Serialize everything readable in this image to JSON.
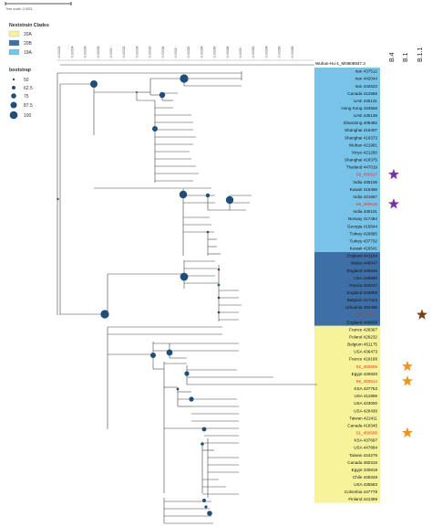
{
  "scale_label": "Tree scale: 0.0001",
  "axis_ticks": [
    "0.00002",
    "0.00004",
    "0.00006",
    "0.00008",
    "0.0001",
    "0.00012",
    "0.00014",
    "0.00016",
    "0.00018",
    "0.0002",
    "0.00022",
    "0.00024",
    "0.00026",
    "0.00028",
    "0.0003",
    "0.00032",
    "0.00034",
    "0.00036",
    "0.00038"
  ],
  "legend": {
    "clades_title": "Nextstrain Clades",
    "clades": [
      {
        "label": "20A",
        "color": "#f6f39a"
      },
      {
        "label": "20B",
        "color": "#3e6fa6"
      },
      {
        "label": "19A",
        "color": "#78c4e8"
      }
    ],
    "bootstrap_title": "bootstrap",
    "bootstrap": [
      "50",
      "62.5",
      "75",
      "87.5",
      "100"
    ]
  },
  "columns": [
    "B.4",
    "B.1",
    "B.1.1"
  ],
  "root_label": "Wuhan-Hu-1_MN908947.3",
  "colors": {
    "highlight": "#e2302a",
    "normal": "#222222",
    "purple_star": "#7d2fa6",
    "brown_star": "#7b3f12",
    "orange_star": "#f0921e",
    "node": "#1f4e79"
  },
  "tips": [
    {
      "label": "Iran 437512",
      "clade": "19A",
      "highlight": false
    },
    {
      "label": "Iran 442044",
      "clade": "19A",
      "highlight": false
    },
    {
      "label": "Iran 442523",
      "clade": "19A",
      "highlight": false
    },
    {
      "label": "Canada 412965",
      "clade": "19A",
      "highlight": false
    },
    {
      "label": "UAE 435131",
      "clade": "19A",
      "highlight": false
    },
    {
      "label": "Hong Kong 434566",
      "clade": "19A",
      "highlight": false
    },
    {
      "label": "UAE 435139",
      "clade": "19A",
      "highlight": false
    },
    {
      "label": "Shandong 408482",
      "clade": "19A",
      "highlight": false
    },
    {
      "label": "Shanghai 416407",
      "clade": "19A",
      "highlight": false
    },
    {
      "label": "Shanghai 416373",
      "clade": "19A",
      "highlight": false
    },
    {
      "label": "Wuhan 421981",
      "clade": "19A",
      "highlight": false
    },
    {
      "label": "Xinyu 421260",
      "clade": "19A",
      "highlight": false
    },
    {
      "label": "Shanghai 416375",
      "clade": "19A",
      "highlight": false
    },
    {
      "label": "Thailand 447019",
      "clade": "19A",
      "highlight": false
    },
    {
      "label": "S5_450517",
      "clade": "19A",
      "highlight": true,
      "star": "purple"
    },
    {
      "label": "India 435106",
      "clade": "19A",
      "highlight": false
    },
    {
      "label": "Kuwait 416458",
      "clade": "19A",
      "highlight": false
    },
    {
      "label": "India 421667",
      "clade": "19A",
      "highlight": false
    },
    {
      "label": "S8_450515",
      "clade": "19A",
      "highlight": true,
      "star": "purple"
    },
    {
      "label": "India 435101",
      "clade": "19A",
      "highlight": false
    },
    {
      "label": "Norway 417484",
      "clade": "19A",
      "highlight": false
    },
    {
      "label": "Georgia 415644",
      "clade": "19A",
      "highlight": false
    },
    {
      "label": "Turkey 429865",
      "clade": "19A",
      "highlight": false
    },
    {
      "label": "Turkey 437732",
      "clade": "19A",
      "highlight": false
    },
    {
      "label": "Kuwait 416541",
      "clade": "19A",
      "highlight": false
    },
    {
      "label": "England 441184",
      "clade": "20B",
      "highlight": false
    },
    {
      "label": "Wales 446047",
      "clade": "20B",
      "highlight": false
    },
    {
      "label": "England 446846",
      "clade": "20B",
      "highlight": false
    },
    {
      "label": "USA 449890",
      "clade": "20B",
      "highlight": false
    },
    {
      "label": "Russia 450247",
      "clade": "20B",
      "highlight": false
    },
    {
      "label": "England 446808",
      "clade": "20B",
      "highlight": false
    },
    {
      "label": "Belgium 417423",
      "clade": "20B",
      "highlight": false
    },
    {
      "label": "Lithuania 450496",
      "clade": "20B",
      "highlight": false
    },
    {
      "label": "S4_450512",
      "clade": "20B",
      "highlight": true,
      "star": "brown"
    },
    {
      "label": "England 446808",
      "clade": "20B",
      "highlight": false
    },
    {
      "label": "France 428367",
      "clade": "20A",
      "highlight": false
    },
    {
      "label": "Poland 428232",
      "clade": "20A",
      "highlight": false
    },
    {
      "label": "Belgium 451175",
      "clade": "20A",
      "highlight": false
    },
    {
      "label": "USA 436473",
      "clade": "20A",
      "highlight": false
    },
    {
      "label": "France 419168",
      "clade": "20A",
      "highlight": false
    },
    {
      "label": "S2_450509",
      "clade": "20A",
      "highlight": true,
      "star": "orange"
    },
    {
      "label": "Egypt 430820",
      "clade": "20A",
      "highlight": false
    },
    {
      "label": "S6_450514",
      "clade": "20A",
      "highlight": true,
      "star": "orange"
    },
    {
      "label": "KSA 437753",
      "clade": "20A",
      "highlight": false
    },
    {
      "label": "USA 411959",
      "clade": "20A",
      "highlight": false
    },
    {
      "label": "USA 423000",
      "clade": "20A",
      "highlight": false
    },
    {
      "label": "USA 426430",
      "clade": "20A",
      "highlight": false
    },
    {
      "label": "Taiwan 422411",
      "clade": "20A",
      "highlight": false
    },
    {
      "label": "Canada 418345",
      "clade": "20A",
      "highlight": false
    },
    {
      "label": "S1_450508",
      "clade": "20A",
      "highlight": true,
      "star": "orange"
    },
    {
      "label": "KSA 437697",
      "clade": "20A",
      "highlight": false
    },
    {
      "label": "USA 447884",
      "clade": "20A",
      "highlight": false
    },
    {
      "label": "Taiwan 444276",
      "clade": "20A",
      "highlight": false
    },
    {
      "label": "Canada 450316",
      "clade": "20A",
      "highlight": false
    },
    {
      "label": "Egypt 430819",
      "clade": "20A",
      "highlight": false
    },
    {
      "label": "Chile 445348",
      "clade": "20A",
      "highlight": false
    },
    {
      "label": "USA 435583",
      "clade": "20A",
      "highlight": false
    },
    {
      "label": "Colombia 447778",
      "clade": "20A",
      "highlight": false
    },
    {
      "label": "Finland 441399",
      "clade": "20A",
      "highlight": false
    }
  ]
}
